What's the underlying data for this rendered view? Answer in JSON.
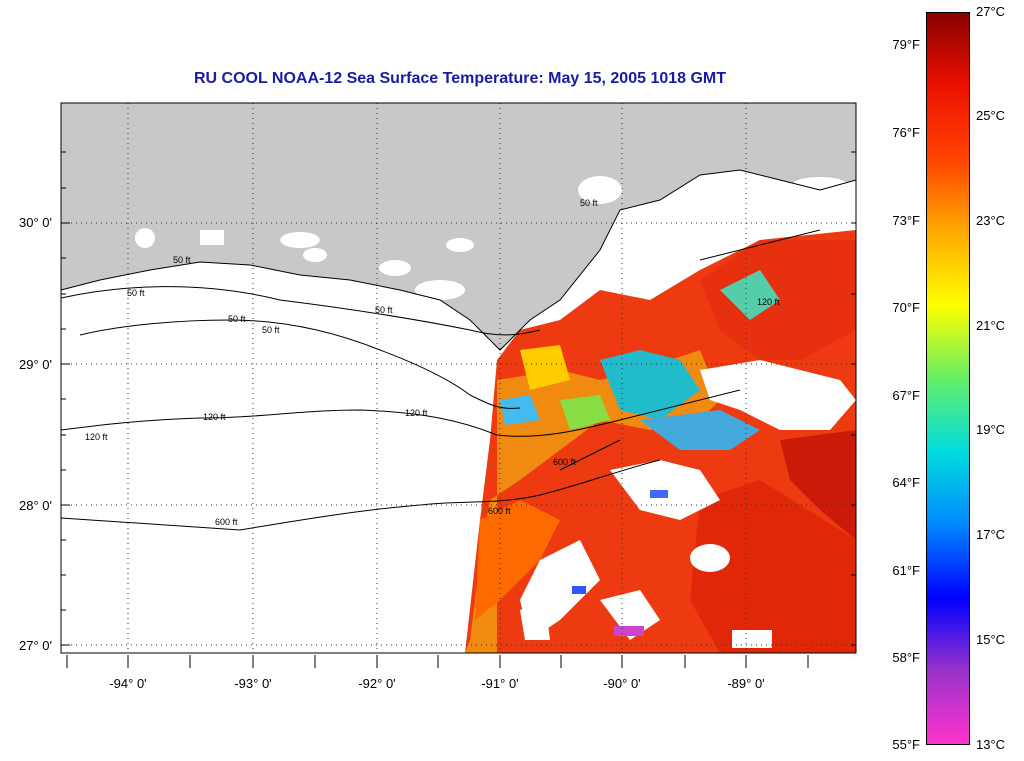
{
  "title": "RU COOL  NOAA-12  Sea Surface Temperature:  May 15, 2005 1018 GMT",
  "latitude_labels": [
    "30° 0'",
    "29° 0'",
    "28° 0'",
    "27° 0'"
  ],
  "longitude_labels": [
    "-94° 0'",
    "-93° 0'",
    "-92° 0'",
    "-91° 0'",
    "-90° 0'",
    "-89° 0'"
  ],
  "colorbar": {
    "fahrenheit_labels": [
      "79°F",
      "76°F",
      "73°F",
      "70°F",
      "67°F",
      "64°F",
      "61°F",
      "58°F",
      "55°F"
    ],
    "celsius_labels": [
      "27°C",
      "25°C",
      "23°C",
      "21°C",
      "19°C",
      "17°C",
      "15°C",
      "13°C"
    ],
    "range_celsius": [
      13,
      27
    ],
    "colors": [
      "#ff33cc",
      "#9933cc",
      "#0000ff",
      "#0088ff",
      "#00dddd",
      "#66ee66",
      "#ffff00",
      "#ffaa00",
      "#ff4400",
      "#ee1100",
      "#880000"
    ]
  },
  "contour_labels": [
    "50 ft",
    "50 ft",
    "50 ft",
    "50 ft",
    "50 ft",
    "120 ft",
    "120 ft",
    "120 ft",
    "600 ft",
    "600 ft",
    "600 ft",
    "50 ft",
    "120 ft"
  ],
  "colors": {
    "land": "#c8c8c8",
    "title": "#1a1aa8",
    "warm": "#ee3a10",
    "hot": "#cc1a08",
    "orange": "#f08a10"
  }
}
